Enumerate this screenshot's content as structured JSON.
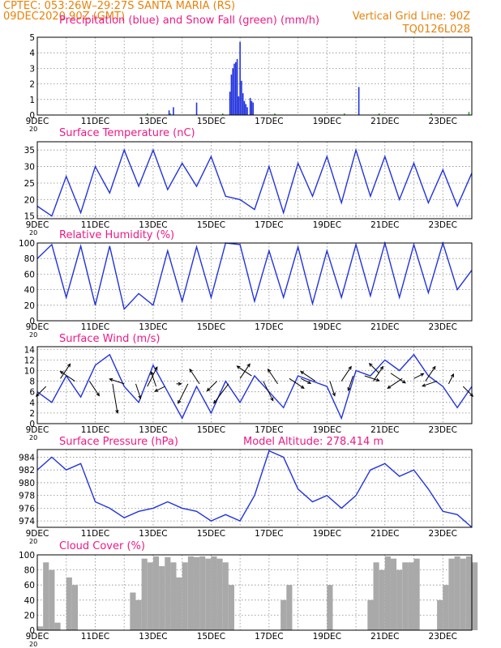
{
  "header": {
    "line1_left": "CPTEC:    053:26W–29:27S    SANTA MARIA (RS)",
    "line2_left": "09DEC2020 90Z (GMT)",
    "line2_right": "Vertical Grid Line: 90Z",
    "line3_right": "TQ0126L028"
  },
  "colors": {
    "header": "#e8820a",
    "title": "#ee1a85",
    "curve": "#2233dd",
    "precip": "#2233dd",
    "snow": "#22aa22",
    "cloud": "#a9a9a9",
    "arrow": "#000000"
  },
  "x_labels": [
    "9DEC",
    "11DEC",
    "13DEC",
    "15DEC",
    "17DEC",
    "19DEC",
    "21DEC",
    "23DEC"
  ],
  "x_stub": "20",
  "chart_data": [
    {
      "id": "precip",
      "type": "bar",
      "title": "Precipitation (blue) and Snow Fall (green) (mm/h)",
      "ylim": [
        0,
        5
      ],
      "yticks": [
        0,
        1,
        2,
        3,
        4,
        5
      ],
      "grid": true,
      "x_unit": "days since 9DEC 00Z (x axis labelled by date)",
      "series": [
        {
          "name": "Precipitation",
          "color": "#2233dd",
          "x": [
            4.55,
            4.7,
            5.5,
            6.65,
            6.7,
            6.75,
            6.8,
            6.85,
            6.9,
            6.95,
            7.0,
            7.05,
            7.1,
            7.15,
            7.2,
            7.25,
            7.35,
            7.4,
            7.45,
            11.1
          ],
          "values": [
            0.3,
            0.5,
            0.8,
            1.5,
            2.6,
            3.0,
            3.3,
            3.4,
            3.6,
            1.2,
            4.7,
            2.2,
            1.4,
            0.9,
            0.7,
            0.5,
            1.1,
            0.9,
            0.8,
            1.8
          ]
        },
        {
          "name": "Snow Fall",
          "color": "#22aa22",
          "x": [
            3.8,
            4.6,
            6.4,
            8.2,
            10.6,
            11.8,
            13.6,
            14.9
          ],
          "values": [
            0.1,
            0.1,
            0.1,
            0.1,
            0.1,
            0.1,
            0.1,
            0.2
          ]
        }
      ]
    },
    {
      "id": "temperature",
      "type": "line",
      "title": "Surface Temperature (nC)",
      "ylim": [
        14.2,
        37.5
      ],
      "yticks": [
        15,
        20,
        25,
        30,
        35
      ],
      "grid": true,
      "x": [
        0.0,
        0.5,
        1.0,
        1.5,
        2.0,
        2.5,
        3.0,
        3.5,
        4.0,
        4.5,
        5.0,
        5.5,
        6.0,
        6.5,
        7.0,
        7.5,
        8.0,
        8.5,
        9.0,
        9.5,
        10.0,
        10.5,
        11.0,
        11.5,
        12.0,
        12.5,
        13.0,
        13.5,
        14.0,
        14.5,
        15.0
      ],
      "values": [
        18,
        15,
        27,
        16,
        30,
        22,
        35,
        24,
        35,
        23,
        31,
        24,
        33,
        21,
        20,
        17,
        30,
        16,
        31,
        21,
        33,
        19,
        35,
        21,
        33,
        20,
        31,
        19,
        29,
        18,
        28
      ],
      "color": "#2233dd"
    },
    {
      "id": "humidity",
      "type": "line",
      "title": "Relative Humidity (%)",
      "ylim": [
        0,
        100
      ],
      "yticks": [
        0,
        20,
        40,
        60,
        80,
        100
      ],
      "grid": true,
      "x": [
        0.0,
        0.5,
        1.0,
        1.5,
        2.0,
        2.5,
        3.0,
        3.5,
        4.0,
        4.5,
        5.0,
        5.5,
        6.0,
        6.5,
        7.0,
        7.5,
        8.0,
        8.5,
        9.0,
        9.5,
        10.0,
        10.5,
        11.0,
        11.5,
        12.0,
        12.5,
        13.0,
        13.5,
        14.0,
        14.5,
        15.0
      ],
      "values": [
        80,
        98,
        30,
        96,
        20,
        96,
        15,
        35,
        20,
        90,
        25,
        95,
        30,
        100,
        98,
        25,
        90,
        30,
        95,
        22,
        90,
        30,
        98,
        32,
        100,
        30,
        98,
        36,
        100,
        40,
        65
      ],
      "color": "#2233dd"
    },
    {
      "id": "wind",
      "type": "line",
      "title": "Surface Wind (m/s)",
      "ylim": [
        0,
        14.5
      ],
      "yticks": [
        0,
        2,
        4,
        6,
        8,
        10,
        12,
        14
      ],
      "grid": true,
      "x": [
        0.0,
        0.5,
        1.0,
        1.5,
        2.0,
        2.5,
        3.0,
        3.5,
        4.0,
        4.5,
        5.0,
        5.5,
        6.0,
        6.5,
        7.0,
        7.5,
        8.0,
        8.5,
        9.0,
        9.5,
        10.0,
        10.5,
        11.0,
        11.5,
        12.0,
        12.5,
        13.0,
        13.5,
        14.0,
        14.5,
        15.0
      ],
      "values": [
        6,
        4,
        9,
        5,
        11,
        13,
        7,
        4,
        11,
        6,
        1,
        7,
        2,
        8,
        4,
        9,
        6,
        3,
        9,
        8,
        7,
        1,
        10,
        9,
        12,
        10,
        13,
        9,
        7,
        3,
        7
      ],
      "vector_x": [
        0.3,
        0.8,
        1.3,
        1.8,
        2.6,
        3.0,
        3.4,
        3.8,
        4.1,
        4.4,
        4.8,
        5.2,
        5.6,
        6.2,
        6.6,
        7.0,
        7.4,
        7.8,
        8.3,
        8.7,
        9.1,
        9.6,
        10.1,
        10.5,
        10.9,
        11.3,
        11.6,
        11.8,
        12.2,
        12.6,
        13.0,
        13.4,
        13.8,
        14.2,
        14.7
      ],
      "vector_y": [
        7,
        8.5,
        8,
        8,
        7.5,
        7.5,
        7.5,
        7,
        7,
        7,
        7.5,
        7.5,
        7.5,
        8,
        7.5,
        8.5,
        9,
        8,
        7.5,
        8.5,
        8.5,
        8,
        8,
        8,
        9,
        9,
        8,
        9.5,
        9.5,
        8.5,
        8.5,
        8,
        8,
        7.5,
        7
      ],
      "vector_u": [
        -2,
        2,
        -3,
        2,
        1,
        -3,
        1,
        2,
        -1,
        -2,
        1,
        -2,
        -2,
        -2,
        -3,
        2,
        -3,
        2,
        -2,
        3,
        2,
        -3,
        1,
        2,
        -1,
        3,
        2,
        -2,
        3,
        -3,
        2,
        2,
        -3,
        1,
        2
      ],
      "vector_v": [
        -2,
        3,
        2,
        -3,
        -6,
        1,
        -3,
        4,
        3,
        -1,
        0,
        -4,
        3,
        -2,
        -4,
        3,
        2,
        -4,
        3,
        -2,
        -1,
        2,
        -3,
        3,
        -3,
        -1,
        3,
        2,
        -2,
        -2,
        1,
        3,
        -1,
        2,
        -2
      ],
      "arrow_color": "#000000",
      "color": "#2233dd"
    },
    {
      "id": "pressure",
      "type": "line",
      "title": "Surface Pressure (hPa)",
      "annotation": "Model Altitude: 278.414  m",
      "ylim": [
        973,
        985.2
      ],
      "yticks": [
        974,
        976,
        978,
        980,
        982,
        984
      ],
      "grid": true,
      "x": [
        0.0,
        0.5,
        1.0,
        1.5,
        2.0,
        2.5,
        3.0,
        3.5,
        4.0,
        4.5,
        5.0,
        5.5,
        6.0,
        6.5,
        7.0,
        7.5,
        8.0,
        8.5,
        9.0,
        9.5,
        10.0,
        10.5,
        11.0,
        11.5,
        12.0,
        12.5,
        13.0,
        13.5,
        14.0,
        14.5,
        15.0
      ],
      "values": [
        982,
        984,
        982,
        983,
        977,
        976,
        974.5,
        975.5,
        976,
        977,
        976,
        975.5,
        974,
        975,
        974,
        978,
        985,
        984,
        979,
        977,
        978,
        976,
        978,
        982,
        983,
        981,
        982,
        979,
        975.5,
        975,
        973
      ],
      "color": "#2233dd"
    },
    {
      "id": "cloud",
      "type": "area",
      "title": "Cloud Cover (%)",
      "ylim": [
        0,
        100
      ],
      "yticks": [
        0,
        20,
        40,
        60,
        80,
        100
      ],
      "grid": true,
      "x": [
        0.0,
        0.2,
        0.4,
        0.6,
        0.8,
        1.0,
        1.2,
        1.4,
        1.6,
        1.8,
        2.0,
        2.2,
        2.4,
        2.6,
        2.8,
        3.0,
        3.2,
        3.4,
        3.6,
        3.8,
        4.0,
        4.2,
        4.4,
        4.6,
        4.8,
        5.0,
        5.2,
        5.4,
        5.6,
        5.8,
        6.0,
        6.2,
        6.4,
        6.6,
        6.8,
        7.0,
        7.2,
        7.4,
        7.6,
        7.8,
        8.0,
        8.2,
        8.4,
        8.6,
        8.8,
        9.0,
        9.2,
        9.4,
        9.6,
        9.8,
        10.0,
        10.2,
        10.4,
        10.6,
        10.8,
        11.0,
        11.2,
        11.4,
        11.6,
        11.8,
        12.0,
        12.2,
        12.4,
        12.6,
        12.8,
        13.0,
        13.2,
        13.4,
        13.6,
        13.8,
        14.0,
        14.2,
        14.4,
        14.6,
        14.8,
        15.0
      ],
      "values": [
        5,
        90,
        80,
        10,
        0,
        70,
        60,
        0,
        0,
        0,
        0,
        0,
        0,
        0,
        0,
        0,
        50,
        40,
        95,
        90,
        98,
        85,
        97,
        90,
        70,
        90,
        98,
        97,
        98,
        95,
        98,
        95,
        90,
        60,
        0,
        0,
        0,
        0,
        0,
        0,
        0,
        0,
        40,
        60,
        0,
        0,
        0,
        0,
        0,
        0,
        60,
        0,
        0,
        0,
        0,
        0,
        0,
        40,
        90,
        80,
        98,
        95,
        80,
        90,
        90,
        95,
        0,
        0,
        0,
        40,
        60,
        95,
        98,
        95,
        98,
        90
      ],
      "color": "#a9a9a9"
    }
  ]
}
